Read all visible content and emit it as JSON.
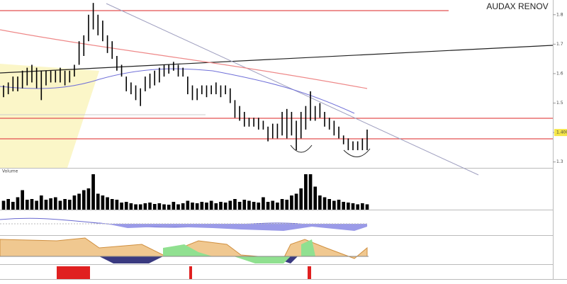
{
  "chart_data": [
    {
      "type": "ohlc",
      "title": "AUDAX RENOV",
      "color": "#000000",
      "high": [
        1.56,
        1.57,
        1.59,
        1.59,
        1.61,
        1.62,
        1.63,
        1.62,
        1.61,
        1.61,
        1.61,
        1.61,
        1.62,
        1.61,
        1.61,
        1.63,
        1.71,
        1.73,
        1.8,
        1.84,
        1.8,
        1.78,
        1.73,
        1.71,
        1.66,
        1.63,
        1.59,
        1.57,
        1.56,
        1.55,
        1.59,
        1.6,
        1.61,
        1.62,
        1.63,
        1.63,
        1.64,
        1.63,
        1.62,
        1.59,
        1.56,
        1.55,
        1.56,
        1.56,
        1.56,
        1.57,
        1.56,
        1.56,
        1.55,
        1.51,
        1.49,
        1.47,
        1.45,
        1.45,
        1.45,
        1.44,
        1.42,
        1.43,
        1.43,
        1.47,
        1.48,
        1.47,
        1.44,
        1.47,
        1.49,
        1.54,
        1.49,
        1.5,
        1.47,
        1.45,
        1.44,
        1.42,
        1.39,
        1.38,
        1.37,
        1.37,
        1.38,
        1.41
      ],
      "low": [
        1.52,
        1.53,
        1.54,
        1.54,
        1.55,
        1.56,
        1.57,
        1.55,
        1.51,
        1.56,
        1.57,
        1.57,
        1.57,
        1.56,
        1.57,
        1.59,
        1.63,
        1.66,
        1.71,
        1.75,
        1.73,
        1.71,
        1.67,
        1.65,
        1.61,
        1.59,
        1.54,
        1.53,
        1.51,
        1.49,
        1.54,
        1.55,
        1.56,
        1.57,
        1.59,
        1.6,
        1.61,
        1.59,
        1.59,
        1.53,
        1.51,
        1.51,
        1.53,
        1.52,
        1.53,
        1.53,
        1.52,
        1.53,
        1.5,
        1.45,
        1.44,
        1.42,
        1.42,
        1.42,
        1.41,
        1.41,
        1.37,
        1.38,
        1.38,
        1.39,
        1.38,
        1.39,
        1.34,
        1.38,
        1.41,
        1.44,
        1.44,
        1.45,
        1.42,
        1.41,
        1.39,
        1.38,
        1.36,
        1.34,
        1.34,
        1.34,
        1.34,
        1.34
      ],
      "ylim": [
        1.28,
        1.85
      ],
      "yticks": [
        1.3,
        {
          "value": 1.4,
          "label": "1.400"
        },
        1.5,
        1.6,
        1.7,
        1.8
      ]
    },
    {
      "type": "bar",
      "title": "Volume",
      "color": "#000000",
      "values": [
        25,
        30,
        22,
        35,
        55,
        28,
        30,
        25,
        40,
        28,
        32,
        35,
        25,
        30,
        28,
        40,
        45,
        55,
        60,
        100,
        45,
        40,
        35,
        30,
        28,
        20,
        22,
        18,
        15,
        15,
        18,
        20,
        16,
        18,
        15,
        14,
        22,
        15,
        18,
        25,
        20,
        18,
        22,
        20,
        25,
        18,
        22,
        20,
        25,
        30,
        22,
        28,
        25,
        22,
        20,
        35,
        22,
        25,
        20,
        30,
        28,
        40,
        45,
        60,
        100,
        100,
        65,
        40,
        35,
        30,
        25,
        28,
        22,
        20,
        18,
        15,
        18,
        15
      ],
      "ylim": [
        0,
        100
      ]
    }
  ]
}
